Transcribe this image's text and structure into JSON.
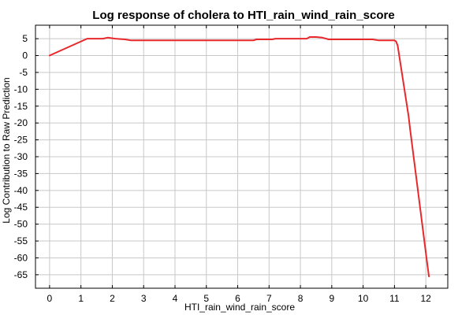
{
  "chart_data": {
    "type": "line",
    "title": "Log response of cholera to HTI_rain_wind_rain_score",
    "xlabel": "HTI_rain_wind_rain_score",
    "ylabel": "Log Contribution to Raw Prediction",
    "xlim": [
      -0.45,
      12.7
    ],
    "ylim": [
      -69,
      9
    ],
    "xticks": [
      0,
      1,
      2,
      3,
      4,
      5,
      6,
      7,
      8,
      9,
      10,
      11,
      12
    ],
    "yticks": [
      5,
      0,
      -5,
      -10,
      -15,
      -20,
      -25,
      -30,
      -35,
      -40,
      -45,
      -50,
      -55,
      -60,
      -65
    ],
    "grid": true,
    "legend": "none",
    "colors": {
      "series": "#e8282b",
      "grid": "#c8c8c8",
      "frame": "#000000"
    },
    "series": [
      {
        "x": [
          0.0,
          1.2,
          1.7,
          1.85,
          2.1,
          2.4,
          2.6,
          6.5,
          6.6,
          7.1,
          7.2,
          8.2,
          8.3,
          8.5,
          8.7,
          8.9,
          10.3,
          10.5,
          11.0,
          11.05,
          11.1,
          11.45,
          11.5,
          12.05,
          12.1
        ],
        "y": [
          0.0,
          5.0,
          5.0,
          5.3,
          5.0,
          4.8,
          4.5,
          4.5,
          4.8,
          4.8,
          5.0,
          5.0,
          5.5,
          5.5,
          5.3,
          4.8,
          4.8,
          4.5,
          4.5,
          4.2,
          3.0,
          -18.0,
          -22.0,
          -62.0,
          -65.5
        ]
      }
    ]
  }
}
